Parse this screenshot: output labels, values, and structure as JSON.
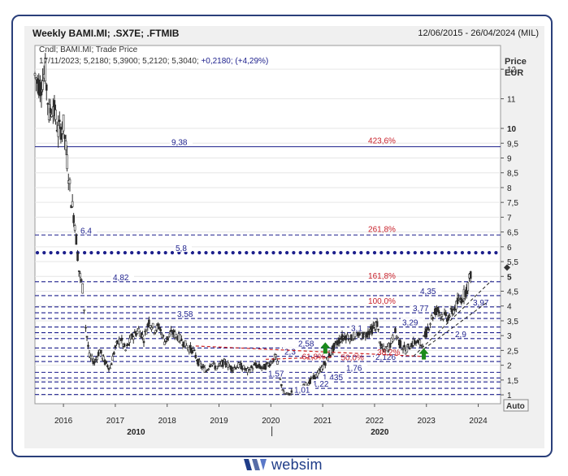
{
  "header": {
    "title": "Weekly BAMI.MI; .SX7E; .FTMIB",
    "date_range": "12/06/2015 - 26/04/2024 (MIL)"
  },
  "legend": {
    "line1": "Cndl; BAMI.MI; Trade Price",
    "ohlc": "17/11/2023; 5,2180; 5,3900; 5,2120; 5,3040;",
    "change": "+0,2180; (+4,29%)"
  },
  "axis": {
    "y_title": "Price",
    "y_unit": "EUR",
    "auto_label": "Auto"
  },
  "footer": {
    "brand": "websim"
  },
  "colors": {
    "frame": "#2a3f7a",
    "navy": "#1c1f8c",
    "fib_red": "#c8202a",
    "trend_red": "#cc2020",
    "arrow_green": "#1a8a1a",
    "candle": "#2b2b2b"
  },
  "chart_data": {
    "type": "candlestick",
    "ylim": [
      0.7,
      12.8
    ],
    "y_ticks": [
      {
        "v": 1,
        "t": "1"
      },
      {
        "v": 1.5,
        "t": "1,5"
      },
      {
        "v": 2,
        "t": "2"
      },
      {
        "v": 2.5,
        "t": "2,5"
      },
      {
        "v": 3,
        "t": "3"
      },
      {
        "v": 3.5,
        "t": "3,5"
      },
      {
        "v": 4,
        "t": "4"
      },
      {
        "v": 4.5,
        "t": "4,5"
      },
      {
        "v": 5,
        "t": "5"
      },
      {
        "v": 5.5,
        "t": "5,5"
      },
      {
        "v": 6,
        "t": "6"
      },
      {
        "v": 6.5,
        "t": "6,5"
      },
      {
        "v": 7,
        "t": "7"
      },
      {
        "v": 7.5,
        "t": "7,5"
      },
      {
        "v": 8,
        "t": "8"
      },
      {
        "v": 8.5,
        "t": "8,5"
      },
      {
        "v": 9,
        "t": "9"
      },
      {
        "v": 9.5,
        "t": "9,5"
      },
      {
        "v": 10,
        "t": "10"
      },
      {
        "v": 11,
        "t": "11"
      },
      {
        "v": 12,
        "t": "12"
      }
    ],
    "bold_ticks": [
      "5",
      "10"
    ],
    "x_ticks": [
      {
        "v": 2016,
        "t": "2016"
      },
      {
        "v": 2017,
        "t": "2017"
      },
      {
        "v": 2018,
        "t": "2018"
      },
      {
        "v": 2019,
        "t": "2019"
      },
      {
        "v": 2020,
        "t": "2020"
      },
      {
        "v": 2021,
        "t": "2021"
      },
      {
        "v": 2022,
        "t": "2022"
      },
      {
        "v": 2023,
        "t": "2023"
      },
      {
        "v": 2024,
        "t": "2024"
      }
    ],
    "x_decades": [
      {
        "v": 2017.4,
        "t": "2010"
      },
      {
        "v": 2022.1,
        "t": "2020"
      }
    ],
    "xlim": [
      2015.45,
      2024.43
    ],
    "price_points": [
      [
        2015.45,
        11.8
      ],
      [
        2015.55,
        11.4
      ],
      [
        2015.65,
        11.9
      ],
      [
        2015.72,
        10.5
      ],
      [
        2015.8,
        10.8
      ],
      [
        2015.9,
        9.9
      ],
      [
        2016.0,
        10.1
      ],
      [
        2016.07,
        8.9
      ],
      [
        2016.15,
        7.6
      ],
      [
        2016.22,
        6.8
      ],
      [
        2016.3,
        5.2
      ],
      [
        2016.37,
        4.6
      ],
      [
        2016.43,
        3.3
      ],
      [
        2016.5,
        2.3
      ],
      [
        2016.6,
        2.1
      ],
      [
        2016.7,
        2.5
      ],
      [
        2016.8,
        2.1
      ],
      [
        2016.9,
        1.9
      ],
      [
        2017.0,
        2.6
      ],
      [
        2017.1,
        2.9
      ],
      [
        2017.2,
        2.5
      ],
      [
        2017.3,
        2.9
      ],
      [
        2017.45,
        3.2
      ],
      [
        2017.55,
        2.9
      ],
      [
        2017.65,
        3.5
      ],
      [
        2017.75,
        3.2
      ],
      [
        2017.85,
        3.3
      ],
      [
        2017.95,
        2.8
      ],
      [
        2018.1,
        3.1
      ],
      [
        2018.25,
        2.9
      ],
      [
        2018.4,
        2.6
      ],
      [
        2018.5,
        2.5
      ],
      [
        2018.6,
        2.1
      ],
      [
        2018.75,
        1.8
      ],
      [
        2018.85,
        2.1
      ],
      [
        2018.95,
        1.9
      ],
      [
        2019.1,
        2.1
      ],
      [
        2019.25,
        1.9
      ],
      [
        2019.4,
        2.0
      ],
      [
        2019.55,
        1.8
      ],
      [
        2019.7,
        2.0
      ],
      [
        2019.85,
        1.9
      ],
      [
        2020.0,
        2.1
      ],
      [
        2020.1,
        2.3
      ],
      [
        2020.18,
        1.5
      ],
      [
        2020.25,
        1.05
      ],
      [
        2020.35,
        1.0
      ],
      [
        2020.45,
        1.2
      ],
      [
        2020.55,
        1.15
      ],
      [
        2020.65,
        1.3
      ],
      [
        2020.75,
        1.45
      ],
      [
        2020.85,
        1.6
      ],
      [
        2020.95,
        1.8
      ],
      [
        2021.05,
        2.1
      ],
      [
        2021.15,
        2.4
      ],
      [
        2021.25,
        2.7
      ],
      [
        2021.35,
        2.9
      ],
      [
        2021.45,
        3.0
      ],
      [
        2021.55,
        2.9
      ],
      [
        2021.65,
        3.1
      ],
      [
        2021.75,
        3.0
      ],
      [
        2021.85,
        3.1
      ],
      [
        2021.95,
        3.2
      ],
      [
        2022.05,
        3.4
      ],
      [
        2022.12,
        2.6
      ],
      [
        2022.2,
        2.5
      ],
      [
        2022.3,
        2.7
      ],
      [
        2022.4,
        3.1
      ],
      [
        2022.5,
        2.7
      ],
      [
        2022.6,
        2.5
      ],
      [
        2022.7,
        2.7
      ],
      [
        2022.8,
        2.8
      ],
      [
        2022.9,
        2.7
      ],
      [
        2023.0,
        3.1
      ],
      [
        2023.1,
        3.6
      ],
      [
        2023.2,
        3.9
      ],
      [
        2023.3,
        3.7
      ],
      [
        2023.4,
        3.6
      ],
      [
        2023.5,
        3.8
      ],
      [
        2023.6,
        4.1
      ],
      [
        2023.7,
        4.3
      ],
      [
        2023.8,
        4.7
      ],
      [
        2023.88,
        5.3
      ]
    ],
    "fib_levels": [
      {
        "v": 9.38,
        "label": "9,38",
        "pct": "423,6%",
        "solid": true
      },
      {
        "v": 6.4,
        "label": "6,4",
        "pct": "261,8%"
      },
      {
        "v": 5.8,
        "label": "5,8",
        "dotted_big": true
      },
      {
        "v": 4.82,
        "label": "4,82",
        "pct": "161,8%"
      },
      {
        "v": 4.35,
        "label": "4,35"
      },
      {
        "v": 3.97,
        "label": "3,97",
        "pct": "100,0%"
      },
      {
        "v": 3.77,
        "label": "3,77"
      },
      {
        "v": 3.58,
        "label": "3,58"
      },
      {
        "v": 3.29,
        "label": "3,29"
      },
      {
        "v": 3.1,
        "label": "3,1"
      },
      {
        "v": 2.9,
        "label": "2,9"
      },
      {
        "v": 2.58,
        "label": "2,58"
      },
      {
        "v": 2.3,
        "label": "2,3"
      },
      {
        "v": 2.126,
        "label": "2,126"
      },
      {
        "v": 1.76,
        "label": "1,76"
      },
      {
        "v": 1.57,
        "label": "1,57"
      },
      {
        "v": 1.435,
        "label": "1,435"
      },
      {
        "v": 1.22,
        "label": "1,22"
      },
      {
        "v": 1.01,
        "label": "1,01"
      }
    ],
    "extra_pct_labels": [
      {
        "v": 2.3,
        "x": 2020.6,
        "t": "61,8%"
      },
      {
        "v": 2.28,
        "x": 2021.35,
        "t": "50,0%"
      },
      {
        "v": 2.45,
        "x": 2022.05,
        "t": "38,2%"
      }
    ]
  }
}
